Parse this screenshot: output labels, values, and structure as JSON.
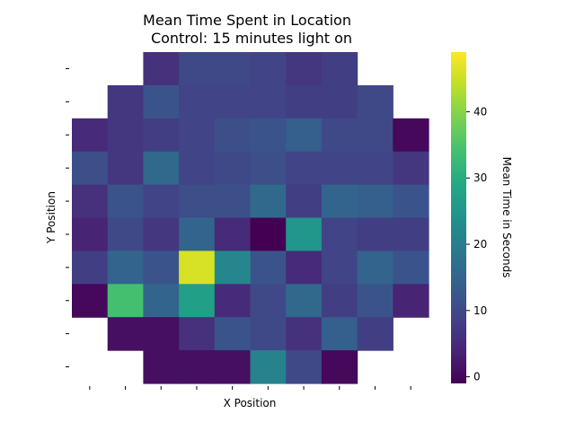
{
  "chart_data": {
    "type": "heatmap",
    "title_line1": "Mean Time Spent in Location",
    "title_line2": "Control: 15 minutes light on",
    "xlabel": "X Position",
    "ylabel": "Y Position",
    "colorbar_label": "Mean Time in Seconds",
    "colormap": "viridis",
    "vmin": -1,
    "vmax": 49,
    "colorbar_ticks": [
      0,
      10,
      20,
      30,
      40
    ],
    "rows": 10,
    "cols": 10,
    "grid": false,
    "values": [
      [
        null,
        null,
        6,
        10,
        10,
        9,
        7,
        8,
        null,
        null
      ],
      [
        null,
        7,
        12,
        9,
        9,
        9,
        8,
        8,
        10,
        null
      ],
      [
        5,
        7,
        8,
        9,
        11,
        12,
        14,
        10,
        10,
        0
      ],
      [
        11,
        7,
        16,
        9,
        10,
        11,
        9,
        9,
        9,
        7
      ],
      [
        6,
        12,
        9,
        11,
        11,
        16,
        8,
        15,
        14,
        12
      ],
      [
        4,
        10,
        7,
        15,
        5,
        -1,
        25,
        9,
        8,
        8
      ],
      [
        8,
        15,
        12,
        46,
        22,
        12,
        5,
        9,
        15,
        12
      ],
      [
        0,
        34,
        15,
        27,
        5,
        10,
        16,
        8,
        12,
        4
      ],
      [
        null,
        1,
        1,
        6,
        12,
        10,
        6,
        14,
        8,
        null
      ],
      [
        null,
        null,
        1,
        1,
        1,
        21,
        10,
        0,
        null,
        null
      ]
    ]
  }
}
